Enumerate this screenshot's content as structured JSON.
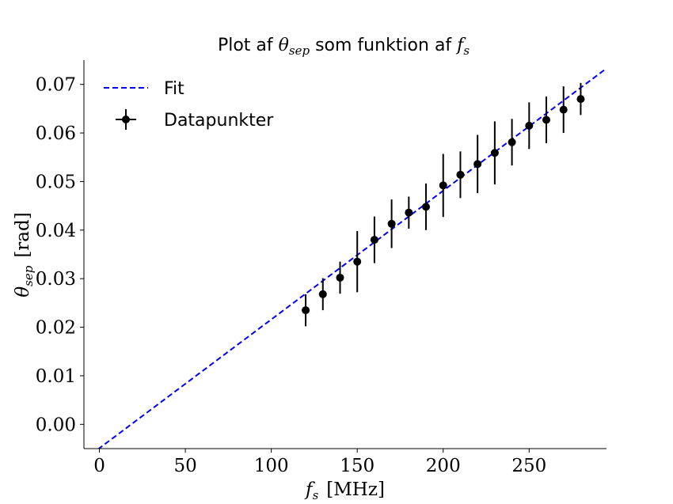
{
  "chart_data": {
    "type": "scatter",
    "title": "Plot af θsep som funktion af fs",
    "title_parts": {
      "text1": "Plot af ",
      "sym1": "θ",
      "sub1": "sep",
      "text2": " som funktion af ",
      "sym2": "f",
      "sub2": "s"
    },
    "xlabel": "fs [MHz]",
    "xlabel_parts": {
      "sym": "f",
      "sub": "s",
      "unit": "[MHz]"
    },
    "ylabel": "θsep [rad]",
    "ylabel_parts": {
      "sym": "θ",
      "sub": "sep",
      "unit": "[rad]"
    },
    "xlim": [
      -9,
      295
    ],
    "ylim": [
      -0.005,
      0.075
    ],
    "xticks": [
      0,
      50,
      100,
      150,
      200,
      250
    ],
    "yticks": [
      0.0,
      0.01,
      0.02,
      0.03,
      0.04,
      0.05,
      0.06,
      0.07
    ],
    "grid": false,
    "legend_position": "upper-left",
    "series": [
      {
        "name": "Datapunkter",
        "kind": "errorbar",
        "color": "#000000",
        "x": [
          120,
          130,
          140,
          150,
          160,
          170,
          180,
          190,
          200,
          210,
          220,
          230,
          240,
          250,
          260,
          270,
          280
        ],
        "y": [
          0.0235,
          0.0268,
          0.0302,
          0.0335,
          0.038,
          0.0413,
          0.0436,
          0.0448,
          0.0492,
          0.0514,
          0.0536,
          0.0559,
          0.0581,
          0.0615,
          0.0627,
          0.0648,
          0.067
        ],
        "yerr": [
          0.0033,
          0.0033,
          0.0033,
          0.0063,
          0.0048,
          0.005,
          0.0033,
          0.0048,
          0.0065,
          0.0048,
          0.006,
          0.0065,
          0.0048,
          0.0048,
          0.0048,
          0.0048,
          0.0033
        ]
      },
      {
        "name": "Fit",
        "kind": "line",
        "style": "dashed",
        "color": "#0000ff",
        "x": [
          -9,
          295
        ],
        "y": [
          -0.0073,
          0.0733
        ]
      }
    ]
  }
}
